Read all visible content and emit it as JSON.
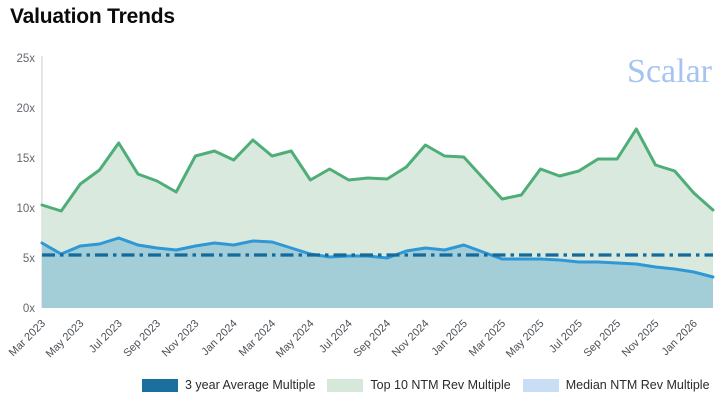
{
  "page": {
    "title": "Valuation Trends",
    "brand": "Scalar"
  },
  "legend": [
    {
      "label": "3 year Average Multiple",
      "color": "#1a6f9e"
    },
    {
      "label": "Top 10 NTM Rev Multiple",
      "color": "#d5e8da"
    },
    {
      "label": "Median NTM Rev Multiple",
      "color": "#c9def5"
    }
  ],
  "chart_data": {
    "type": "area",
    "title": "Valuation Trends",
    "brand_watermark": "Scalar",
    "xlabel": "",
    "ylabel": "",
    "ylim": [
      0,
      25
    ],
    "grid": false,
    "legend_position": "bottom",
    "y_ticks": [
      {
        "value": 0,
        "label": "0x"
      },
      {
        "value": 5,
        "label": "5x"
      },
      {
        "value": 10,
        "label": "10x"
      },
      {
        "value": 15,
        "label": "15x"
      },
      {
        "value": 20,
        "label": "20x"
      },
      {
        "value": 25,
        "label": "25x"
      }
    ],
    "x_tick_labels": [
      "Mar 2023",
      "May 2023",
      "Jul 2023",
      "Sep 2023",
      "Nov 2023",
      "Jan 2024",
      "Mar 2024",
      "May 2024",
      "Jul 2024",
      "Sep 2024",
      "Nov 2024",
      "Jan 2025",
      "Mar 2025",
      "May 2025",
      "Jul 2025",
      "Sep 2025",
      "Nov 2025",
      "Jan 2026"
    ],
    "categories": [
      "Mar 2023",
      "Apr 2023",
      "May 2023",
      "Jun 2023",
      "Jul 2023",
      "Aug 2023",
      "Sep 2023",
      "Oct 2023",
      "Nov 2023",
      "Dec 2023",
      "Jan 2024",
      "Feb 2024",
      "Mar 2024",
      "Apr 2024",
      "May 2024",
      "Jun 2024",
      "Jul 2024",
      "Aug 2024",
      "Sep 2024",
      "Oct 2024",
      "Nov 2024",
      "Dec 2024",
      "Jan 2025",
      "Feb 2025",
      "Mar 2025",
      "Apr 2025",
      "May 2025",
      "Jun 2025",
      "Jul 2025",
      "Aug 2025",
      "Sep 2025",
      "Oct 2025",
      "Nov 2025",
      "Dec 2025",
      "Jan 2026",
      "Feb 2026"
    ],
    "series": [
      {
        "name": "Top 10 NTM Rev Multiple",
        "line_color": "#4fae78",
        "fill_color": "#d9e9dd",
        "values": [
          10.3,
          9.7,
          12.4,
          13.8,
          16.5,
          13.4,
          12.7,
          11.6,
          15.2,
          15.7,
          14.8,
          16.8,
          15.2,
          15.7,
          12.8,
          13.9,
          12.8,
          13.0,
          12.9,
          14.1,
          16.3,
          15.2,
          15.1,
          13.0,
          10.9,
          11.3,
          13.9,
          13.2,
          13.7,
          14.9,
          14.9,
          17.9,
          14.3,
          13.7,
          11.5,
          9.8
        ]
      },
      {
        "name": "Median NTM Rev Multiple",
        "line_color": "#2f97d5",
        "fill_color": "#a4ced7",
        "values": [
          6.5,
          5.4,
          6.2,
          6.4,
          7.0,
          6.3,
          6.0,
          5.8,
          6.2,
          6.5,
          6.3,
          6.7,
          6.6,
          6.0,
          5.4,
          5.1,
          5.2,
          5.2,
          5.0,
          5.7,
          6.0,
          5.8,
          6.3,
          5.6,
          4.9,
          4.9,
          4.9,
          4.8,
          4.6,
          4.6,
          4.5,
          4.4,
          4.1,
          3.9,
          3.6,
          3.1
        ]
      }
    ],
    "reference_line": {
      "name": "3 year Average Multiple",
      "value": 5.3,
      "color": "#156a9c",
      "style": "dash-dot"
    },
    "axis": {
      "y_axis_line_color": "#d9d9d9",
      "y_label_color": "#63686d",
      "x_label_color": "#4d5257"
    }
  }
}
